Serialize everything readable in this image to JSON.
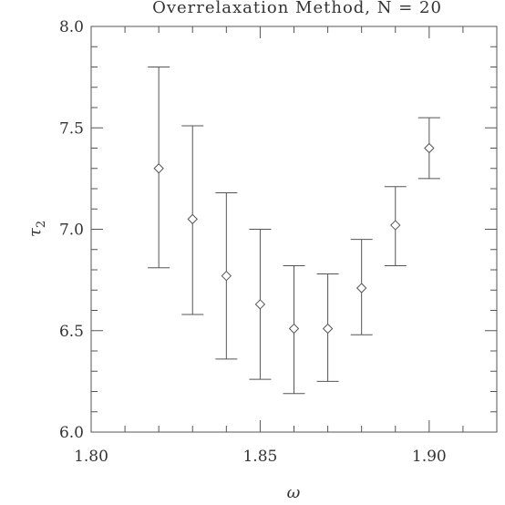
{
  "chart_data": {
    "type": "scatter",
    "title": "Overrelaxation Method, N = 20",
    "xlabel": "ω",
    "ylabel": "τ",
    "ylabel_subscript": "2",
    "xlim": [
      1.8,
      1.92
    ],
    "ylim": [
      6.0,
      8.0
    ],
    "x_ticks": [
      1.8,
      1.85,
      1.9
    ],
    "x_tick_labels": [
      "1.80",
      "1.85",
      "1.90"
    ],
    "x_minor_step": 0.01,
    "y_ticks": [
      6.0,
      6.5,
      7.0,
      7.5,
      8.0
    ],
    "y_tick_labels": [
      "6.0",
      "6.5",
      "7.0",
      "7.5",
      "8.0"
    ],
    "y_minor_step": 0.1,
    "grid": false,
    "marker": "diamond",
    "points": [
      {
        "x": 1.82,
        "y": 7.3,
        "err_low": 6.81,
        "err_high": 7.8
      },
      {
        "x": 1.83,
        "y": 7.05,
        "err_low": 6.58,
        "err_high": 7.51
      },
      {
        "x": 1.84,
        "y": 6.77,
        "err_low": 6.36,
        "err_high": 7.18
      },
      {
        "x": 1.85,
        "y": 6.63,
        "err_low": 6.26,
        "err_high": 7.0
      },
      {
        "x": 1.86,
        "y": 6.51,
        "err_low": 6.19,
        "err_high": 6.82
      },
      {
        "x": 1.87,
        "y": 6.51,
        "err_low": 6.25,
        "err_high": 6.78
      },
      {
        "x": 1.88,
        "y": 6.71,
        "err_low": 6.48,
        "err_high": 6.95
      },
      {
        "x": 1.89,
        "y": 7.02,
        "err_low": 6.82,
        "err_high": 7.21
      },
      {
        "x": 1.9,
        "y": 7.4,
        "err_low": 7.25,
        "err_high": 7.55
      }
    ],
    "colors": {
      "axis": "#555555",
      "marker": "#555555",
      "text": "#333333"
    }
  }
}
